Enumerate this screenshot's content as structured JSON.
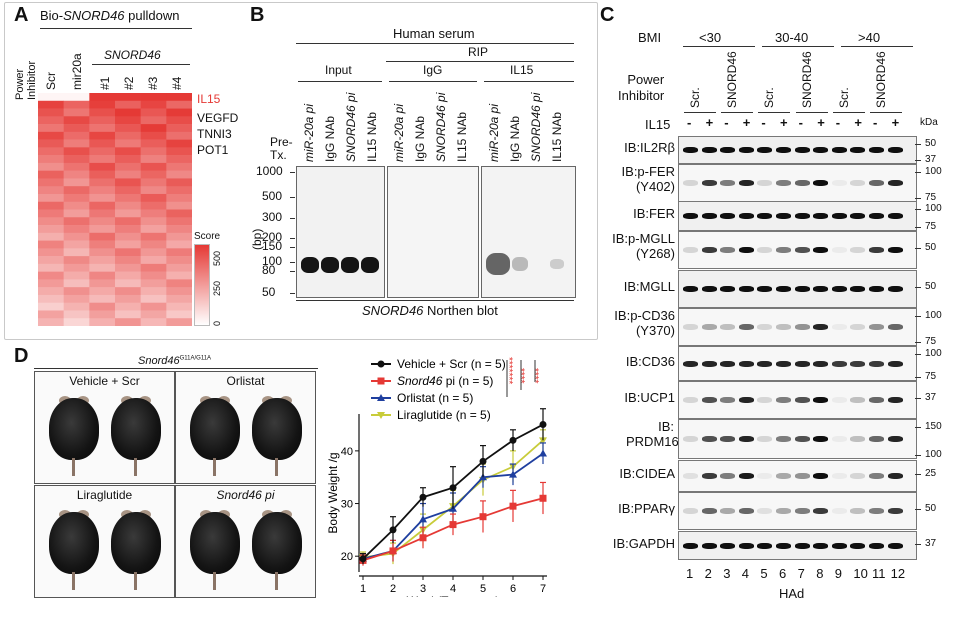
{
  "panels": {
    "a": "A",
    "b": "B",
    "c": "C",
    "d": "D"
  },
  "panel_a": {
    "title_prefix": "Bio-",
    "title_italic": "SNORD46",
    "title_suffix": " pulldown",
    "power_inhibitor": "Power\nInhibitor",
    "cols": [
      "Scr",
      "mir20a",
      "#1",
      "#2",
      "#3",
      "#4"
    ],
    "group_label": "SNORD46",
    "gene_labels": [
      "IL15",
      "VEGFD",
      "TNNI3",
      "POT1"
    ],
    "score_label": "Score",
    "score_ticks": [
      "500",
      "250",
      "0"
    ],
    "accent_color": "#e53935"
  },
  "panel_b": {
    "header": "Human serum",
    "rip_label": "RIP",
    "groups": [
      "Input",
      "IgG",
      "IL15"
    ],
    "lanes": [
      "miR-20a pi",
      "IgG NAb",
      "SNORD46 pi",
      "IL15 NAb"
    ],
    "lane_italic": [
      true,
      false,
      true,
      false
    ],
    "pretx": "Pre-\nTx.",
    "bp_label": "(bp)",
    "bp_ticks": [
      "1000",
      "500",
      "300",
      "200",
      "150",
      "100",
      "80",
      "50"
    ],
    "footer_italic": "SNORD46",
    "footer_rest": " Northen blot"
  },
  "panel_c": {
    "bmi_label": "BMI",
    "bmi_groups": [
      "<30",
      "30-40",
      ">40"
    ],
    "power_inhibitor": "Power\nInhibitor",
    "inhibitor_labels": [
      "Scr.",
      "SNORD46",
      "Scr.",
      "SNORD46",
      "Scr.",
      "SNORD46"
    ],
    "il15_label": "IL15",
    "il15_signs": [
      "-",
      "+",
      "-",
      "+",
      "-",
      "+",
      "-",
      "+",
      "-",
      "+",
      "-",
      "+"
    ],
    "kda_label": "kDa",
    "blots": [
      {
        "label": "IB:IL2Rβ",
        "ticks": [
          "50",
          "37"
        ]
      },
      {
        "label": "IB:p-FER\n(Y402)",
        "ticks": [
          "100",
          "75"
        ]
      },
      {
        "label": "IB:FER",
        "ticks": [
          "100",
          "75"
        ]
      },
      {
        "label": "IB:p-MGLL\n(Y268)",
        "ticks": [
          "50"
        ]
      },
      {
        "label": "IB:MGLL",
        "ticks": [
          "50"
        ]
      },
      {
        "label": "IB:p-CD36\n(Y370)",
        "ticks": [
          "100",
          "75"
        ]
      },
      {
        "label": "IB:CD36",
        "ticks": [
          "100",
          "75"
        ]
      },
      {
        "label": "IB:UCP1",
        "ticks": [
          "37"
        ]
      },
      {
        "label": "IB:\nPRDM16",
        "ticks": [
          "150",
          "100"
        ]
      },
      {
        "label": "IB:CIDEA",
        "ticks": [
          "25"
        ]
      },
      {
        "label": "IB:PPARγ",
        "ticks": [
          "50"
        ]
      },
      {
        "label": "IB:GAPDH",
        "ticks": [
          "37"
        ]
      }
    ],
    "lane_numbers": [
      "1",
      "2",
      "3",
      "4",
      "5",
      "6",
      "7",
      "8",
      "9",
      "10",
      "11",
      "12"
    ],
    "x_label": "HAd"
  },
  "panel_d": {
    "genotype_italic": "Snord46",
    "genotype_sup": "G11A/G11A",
    "photos": [
      "Vehicle + Scr",
      "Orlistat",
      "Liraglutide",
      "Snord46 pi"
    ],
    "photo_italic": [
      false,
      false,
      false,
      true
    ]
  },
  "significance": {
    "line1": "*******",
    "line2": "****",
    "line3": "****",
    "color": "#e53935"
  },
  "chart_data": {
    "type": "line",
    "xlabel": "Week(Treatment)",
    "ylabel": "Body Weight /g",
    "x": [
      1,
      2,
      3,
      4,
      5,
      6,
      7
    ],
    "xlim": [
      1,
      7
    ],
    "ylim": [
      17,
      47
    ],
    "yticks": [
      20,
      30,
      40
    ],
    "series": [
      {
        "name": "Vehicle + Scr (n = 5)",
        "italic_prefix": "",
        "color": "#111111",
        "marker": "circle",
        "values": [
          19.5,
          25,
          31.2,
          33,
          38,
          42,
          45
        ],
        "err": [
          1,
          2.5,
          1.8,
          4,
          3,
          2,
          3
        ]
      },
      {
        "name": "Snord46 pi (n = 5)",
        "italic_prefix": "Snord46",
        "color": "#e53935",
        "marker": "square",
        "values": [
          19.2,
          21,
          23.5,
          26,
          27.5,
          29.5,
          31
        ],
        "err": [
          1,
          2,
          2,
          2,
          3,
          3,
          3
        ]
      },
      {
        "name": "Orlistat (n = 5)",
        "italic_prefix": "",
        "color": "#1f3f9f",
        "marker": "triangle",
        "values": [
          19.5,
          21,
          27,
          29,
          35,
          35.5,
          39.5
        ],
        "err": [
          1,
          2,
          3,
          3,
          2,
          2,
          2
        ]
      },
      {
        "name": "Liraglutide (n = 5)",
        "italic_prefix": "",
        "color": "#c8cc3a",
        "marker": "triangle-down",
        "values": [
          19.8,
          20.5,
          25,
          29.5,
          34.5,
          37,
          42
        ],
        "err": [
          1,
          2,
          3,
          3,
          3,
          3,
          2
        ]
      }
    ]
  }
}
